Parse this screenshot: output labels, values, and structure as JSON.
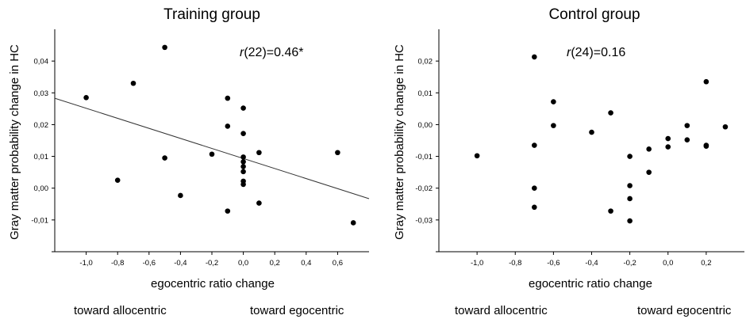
{
  "chart_data": [
    {
      "type": "scatter",
      "title": "Training group",
      "xlabel": "egocentric ratio change",
      "ylabel": "Gray matter probability change in HC",
      "xlim": [
        -1.2,
        0.8
      ],
      "ylim": [
        -0.02,
        0.05
      ],
      "x_ticks": [
        -1.0,
        -0.8,
        -0.6,
        -0.4,
        -0.2,
        0.0,
        0.2,
        0.4,
        0.6
      ],
      "x_tick_labels": [
        "-1,0",
        "-0,8",
        "-0,6",
        "-0,4",
        "-0,2",
        "0,0",
        "0,2",
        "0,4",
        "0,6"
      ],
      "y_ticks": [
        -0.01,
        0.0,
        0.01,
        0.02,
        0.03,
        0.04
      ],
      "y_tick_labels": [
        "-0,01",
        "0,00",
        "0,01",
        "0,02",
        "0,03",
        "0,04"
      ],
      "annotation": {
        "stat": "r",
        "rest": "(22)=0.46*"
      },
      "direction_labels": {
        "left": "toward  allocentric",
        "right": "toward  egocentric"
      },
      "points": [
        {
          "x": -1.0,
          "y": 0.0285
        },
        {
          "x": -0.8,
          "y": 0.0025
        },
        {
          "x": -0.7,
          "y": 0.033
        },
        {
          "x": -0.5,
          "y": 0.0443
        },
        {
          "x": -0.5,
          "y": 0.0095
        },
        {
          "x": -0.4,
          "y": -0.0023
        },
        {
          "x": -0.2,
          "y": 0.0107
        },
        {
          "x": -0.1,
          "y": 0.0283
        },
        {
          "x": -0.1,
          "y": 0.0195
        },
        {
          "x": -0.1,
          "y": -0.0072
        },
        {
          "x": 0.0,
          "y": 0.0252
        },
        {
          "x": 0.0,
          "y": 0.0172
        },
        {
          "x": 0.0,
          "y": 0.0098
        },
        {
          "x": 0.0,
          "y": 0.0083
        },
        {
          "x": 0.0,
          "y": 0.0068
        },
        {
          "x": 0.0,
          "y": 0.0052
        },
        {
          "x": 0.0,
          "y": 0.0022
        },
        {
          "x": 0.0,
          "y": 0.0012
        },
        {
          "x": 0.1,
          "y": 0.0112
        },
        {
          "x": 0.1,
          "y": -0.0047
        },
        {
          "x": 0.6,
          "y": 0.0112
        },
        {
          "x": 0.7,
          "y": -0.0109
        }
      ],
      "fit_line": {
        "x": [
          -1.2,
          0.8
        ],
        "y": [
          0.0283,
          -0.0033
        ]
      }
    },
    {
      "type": "scatter",
      "title": "Control group",
      "xlabel": "egocentric ratio change",
      "ylabel": "Gray matter probability change in HC",
      "xlim": [
        -1.2,
        0.4
      ],
      "ylim": [
        -0.04,
        0.03
      ],
      "x_ticks": [
        -1.0,
        -0.8,
        -0.6,
        -0.4,
        -0.2,
        0.0,
        0.2
      ],
      "x_tick_labels": [
        "-1,0",
        "-0,8",
        "-0,6",
        "-0,4",
        "-0,2",
        "0,0",
        "0,2"
      ],
      "y_ticks": [
        -0.03,
        -0.02,
        -0.01,
        0.0,
        0.01,
        0.02
      ],
      "y_tick_labels": [
        "-0,03",
        "-0,02",
        "-0,01",
        "0,00",
        "0,01",
        "0,02"
      ],
      "annotation": {
        "stat": "r",
        "rest": "(24)=0.16"
      },
      "direction_labels": {
        "left": "toward allocentric",
        "right": "toward egocentric"
      },
      "points": [
        {
          "x": -1.0,
          "y": -0.0098
        },
        {
          "x": -0.7,
          "y": 0.0213
        },
        {
          "x": -0.7,
          "y": -0.0065
        },
        {
          "x": -0.7,
          "y": -0.02
        },
        {
          "x": -0.7,
          "y": -0.026
        },
        {
          "x": -0.6,
          "y": 0.0072
        },
        {
          "x": -0.6,
          "y": -0.0003
        },
        {
          "x": -0.4,
          "y": -0.0024
        },
        {
          "x": -0.3,
          "y": 0.0037
        },
        {
          "x": -0.3,
          "y": -0.0272
        },
        {
          "x": -0.2,
          "y": -0.01
        },
        {
          "x": -0.2,
          "y": -0.0192
        },
        {
          "x": -0.2,
          "y": -0.0233
        },
        {
          "x": -0.2,
          "y": -0.0303
        },
        {
          "x": -0.1,
          "y": -0.0077
        },
        {
          "x": -0.1,
          "y": -0.015
        },
        {
          "x": 0.0,
          "y": -0.0044
        },
        {
          "x": 0.0,
          "y": -0.007
        },
        {
          "x": 0.1,
          "y": -0.0003
        },
        {
          "x": 0.1,
          "y": -0.0048
        },
        {
          "x": 0.2,
          "y": 0.0135
        },
        {
          "x": 0.2,
          "y": -0.0065
        },
        {
          "x": 0.2,
          "y": -0.0068
        },
        {
          "x": 0.3,
          "y": -0.0007
        }
      ]
    }
  ]
}
